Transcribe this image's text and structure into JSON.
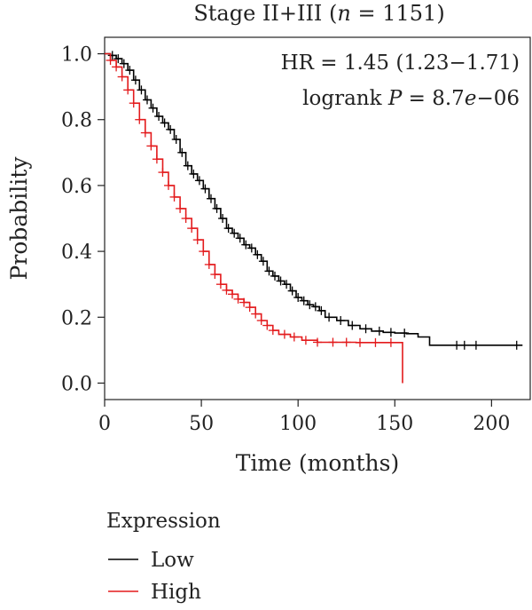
{
  "chart_data": {
    "type": "line",
    "title": "Stage II+III (n = 1151)",
    "title_prefix": "Stage II+III (",
    "title_italic": "n",
    "title_suffix": " = 1151)",
    "xlabel": "Time (months)",
    "ylabel": "Probability",
    "xlim": [
      0,
      220
    ],
    "ylim": [
      -0.05,
      1.05
    ],
    "x_ticks": [
      0,
      50,
      100,
      150,
      200
    ],
    "y_ticks": [
      0.0,
      0.2,
      0.4,
      0.6,
      0.8,
      1.0
    ],
    "x_tick_labels": [
      "0",
      "50",
      "100",
      "150",
      "200"
    ],
    "y_tick_labels": [
      "0.0",
      "0.2",
      "0.4",
      "0.6",
      "0.8",
      "1.0"
    ],
    "grid": false,
    "annotations": {
      "hr": "HR = 1.45 (1.23−1.71)",
      "logrank_prefix": "logrank ",
      "logrank_italic_p": "P",
      "logrank_mid": " = 8.7",
      "logrank_italic_e": "e",
      "logrank_suffix": "−06"
    },
    "legend": {
      "title": "Expression",
      "placement": "bottom-left",
      "entries": [
        {
          "label": "Low",
          "color": "#000000"
        },
        {
          "label": "High",
          "color": "#e31a1c"
        }
      ]
    },
    "series": [
      {
        "name": "Low",
        "color": "#000000",
        "steps": [
          [
            0,
            1.0
          ],
          [
            3,
            0.995
          ],
          [
            6,
            0.985
          ],
          [
            9,
            0.97
          ],
          [
            12,
            0.95
          ],
          [
            15,
            0.92
          ],
          [
            18,
            0.89
          ],
          [
            21,
            0.86
          ],
          [
            24,
            0.835
          ],
          [
            27,
            0.81
          ],
          [
            30,
            0.79
          ],
          [
            33,
            0.77
          ],
          [
            36,
            0.74
          ],
          [
            39,
            0.7
          ],
          [
            42,
            0.66
          ],
          [
            45,
            0.635
          ],
          [
            48,
            0.615
          ],
          [
            51,
            0.59
          ],
          [
            54,
            0.56
          ],
          [
            57,
            0.53
          ],
          [
            60,
            0.5
          ],
          [
            63,
            0.47
          ],
          [
            66,
            0.455
          ],
          [
            69,
            0.44
          ],
          [
            72,
            0.42
          ],
          [
            75,
            0.41
          ],
          [
            78,
            0.39
          ],
          [
            81,
            0.37
          ],
          [
            84,
            0.34
          ],
          [
            87,
            0.325
          ],
          [
            90,
            0.31
          ],
          [
            93,
            0.3
          ],
          [
            96,
            0.28
          ],
          [
            99,
            0.26
          ],
          [
            102,
            0.25
          ],
          [
            105,
            0.238
          ],
          [
            108,
            0.232
          ],
          [
            111,
            0.22
          ],
          [
            114,
            0.2
          ],
          [
            120,
            0.19
          ],
          [
            126,
            0.175
          ],
          [
            132,
            0.165
          ],
          [
            138,
            0.158
          ],
          [
            144,
            0.154
          ],
          [
            150,
            0.152
          ],
          [
            156,
            0.15
          ],
          [
            162,
            0.14
          ],
          [
            168,
            0.115
          ],
          [
            216,
            0.115
          ]
        ],
        "censor_x": [
          4,
          7,
          10,
          13,
          16,
          19,
          22,
          25,
          28,
          31,
          34,
          37,
          40,
          43,
          46,
          49,
          52,
          55,
          58,
          61,
          64,
          67,
          70,
          73,
          76,
          79,
          82,
          85,
          88,
          91,
          94,
          97,
          100,
          103,
          106,
          109,
          112,
          116,
          122,
          128,
          135,
          142,
          148,
          155,
          182,
          186,
          192,
          213
        ]
      },
      {
        "name": "High",
        "color": "#e31a1c",
        "steps": [
          [
            0,
            1.0
          ],
          [
            3,
            0.98
          ],
          [
            6,
            0.96
          ],
          [
            9,
            0.93
          ],
          [
            12,
            0.89
          ],
          [
            15,
            0.85
          ],
          [
            18,
            0.8
          ],
          [
            21,
            0.76
          ],
          [
            24,
            0.72
          ],
          [
            27,
            0.68
          ],
          [
            30,
            0.64
          ],
          [
            33,
            0.6
          ],
          [
            36,
            0.565
          ],
          [
            39,
            0.53
          ],
          [
            42,
            0.5
          ],
          [
            45,
            0.47
          ],
          [
            48,
            0.435
          ],
          [
            51,
            0.4
          ],
          [
            54,
            0.36
          ],
          [
            57,
            0.33
          ],
          [
            60,
            0.3
          ],
          [
            63,
            0.282
          ],
          [
            66,
            0.27
          ],
          [
            69,
            0.255
          ],
          [
            72,
            0.245
          ],
          [
            75,
            0.23
          ],
          [
            78,
            0.21
          ],
          [
            81,
            0.19
          ],
          [
            84,
            0.175
          ],
          [
            87,
            0.16
          ],
          [
            90,
            0.148
          ],
          [
            96,
            0.14
          ],
          [
            102,
            0.13
          ],
          [
            110,
            0.124
          ],
          [
            130,
            0.123
          ],
          [
            154,
            0.123
          ],
          [
            154,
            0.0
          ]
        ],
        "censor_x": [
          3,
          6,
          9,
          12,
          15,
          18,
          21,
          24,
          27,
          30,
          33,
          36,
          39,
          42,
          45,
          48,
          51,
          54,
          57,
          60,
          63,
          66,
          69,
          72,
          75,
          78,
          81,
          84,
          87,
          93,
          98,
          104,
          110,
          118,
          125,
          132,
          140,
          148
        ]
      }
    ]
  }
}
